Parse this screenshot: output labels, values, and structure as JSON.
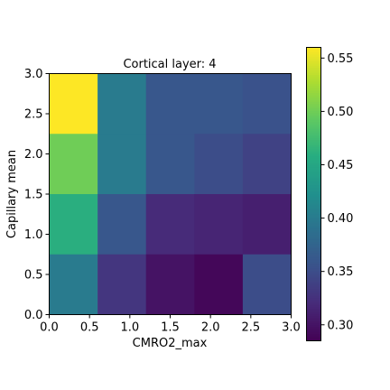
{
  "chart_data": {
    "type": "heatmap",
    "title": "Cortical layer: 4",
    "xlabel": "CMRO2_max",
    "ylabel": "Capillary mean",
    "xlim": [
      0.0,
      3.0
    ],
    "ylim": [
      0.0,
      3.0
    ],
    "x_edges": [
      0.0,
      0.6,
      1.2,
      1.8,
      2.4,
      3.0
    ],
    "y_edges": [
      0.0,
      0.75,
      1.5,
      2.25,
      3.0
    ],
    "x_ticks": [
      0.0,
      0.5,
      1.0,
      1.5,
      2.0,
      2.5,
      3.0
    ],
    "y_ticks": [
      0.0,
      0.5,
      1.0,
      1.5,
      2.0,
      2.5,
      3.0
    ],
    "x_tick_labels": [
      "0.0",
      "0.5",
      "1.0",
      "1.5",
      "2.0",
      "2.5",
      "3.0"
    ],
    "y_tick_labels": [
      "0.0",
      "0.5",
      "1.0",
      "1.5",
      "2.0",
      "2.5",
      "3.0"
    ],
    "values_top_to_bottom": [
      [
        0.56,
        0.4,
        0.36,
        0.36,
        0.355
      ],
      [
        0.5,
        0.4,
        0.36,
        0.35,
        0.34
      ],
      [
        0.46,
        0.36,
        0.32,
        0.315,
        0.31
      ],
      [
        0.4,
        0.33,
        0.3,
        0.29,
        0.35
      ]
    ],
    "colormap": "viridis",
    "colorbar": {
      "vmin": 0.285,
      "vmax": 0.56,
      "ticks": [
        0.3,
        0.35,
        0.4,
        0.45,
        0.5,
        0.55
      ],
      "tick_labels": [
        "0.30",
        "0.35",
        "0.40",
        "0.45",
        "0.50",
        "0.55"
      ]
    },
    "grid": false
  }
}
